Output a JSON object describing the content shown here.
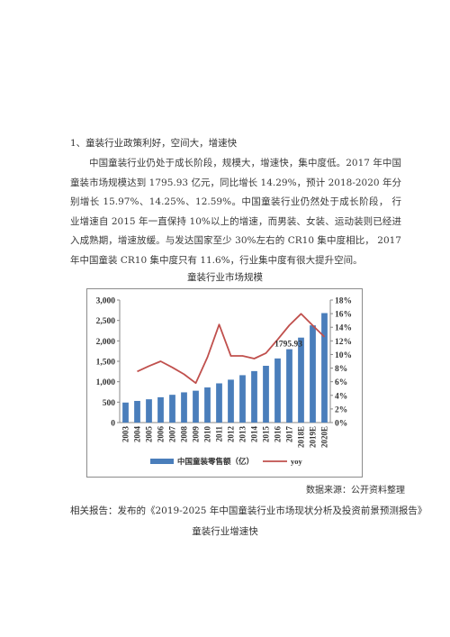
{
  "document": {
    "heading": "1、童装行业政策利好，空间大，增速快",
    "paragraph": "中国童装行业仍处于成长阶段，规模大，增速快，集中度低。2017 年中国童装市场规模达到 1795.93 亿元，同比增长 14.29%，预计 2018-2020 年分别增长 15.97%、14.25%、12.59%。中国童装行业仍然处于成长阶段， 行业增速自 2015 年一直保持 10%以上的增速，而男装、女装、运动装则已经进入成熟期，增速放缓。与发达国家至少 30%左右的 CR10 集中度相比， 2017 年中国童装 CR10 集中度只有 11.6%，行业集中度有很大提升空间。",
    "chart_title": "童装行业市场规模",
    "source": "数据来源：公开资料整理",
    "related": "相关报告：发布的《2019-2025 年中国童装行业市场现状分析及投资前景预测报告》",
    "subtitle": "童装行业增速快"
  },
  "chart_data": {
    "type": "bar",
    "categories": [
      "2003",
      "2004",
      "2005",
      "2006",
      "2007",
      "2008",
      "2009",
      "2010",
      "2011",
      "2012",
      "2013",
      "2014",
      "2015",
      "2016",
      "2017",
      "2018E",
      "2019E",
      "2020E"
    ],
    "series": [
      {
        "name": "中国童装零售额（亿）",
        "type": "bar",
        "axis": "left",
        "color": "#4a7ebb",
        "values": [
          490,
          530,
          570,
          620,
          680,
          740,
          780,
          860,
          960,
          1050,
          1160,
          1260,
          1390,
          1570,
          1795.93,
          2080,
          2380,
          2680
        ]
      },
      {
        "name": "yoy",
        "type": "line",
        "axis": "right",
        "color": "#c0504d",
        "values": [
          null,
          7.5,
          8.3,
          9.0,
          8.1,
          7.1,
          5.8,
          9.6,
          14.4,
          9.8,
          9.8,
          9.4,
          10.2,
          12.2,
          14.3,
          15.97,
          14.25,
          12.59
        ]
      }
    ],
    "data_label": "1795.93",
    "y_left": {
      "min": 0,
      "max": 3000,
      "ticks": [
        "0",
        "500",
        "1,000",
        "1,500",
        "2,000",
        "2,500",
        "3,000"
      ]
    },
    "y_right": {
      "min": 0,
      "max": 18,
      "ticks": [
        "0%",
        "2%",
        "4%",
        "6%",
        "8%",
        "10%",
        "12%",
        "14%",
        "16%",
        "18%"
      ]
    },
    "legend_position": "bottom",
    "grid": false
  }
}
